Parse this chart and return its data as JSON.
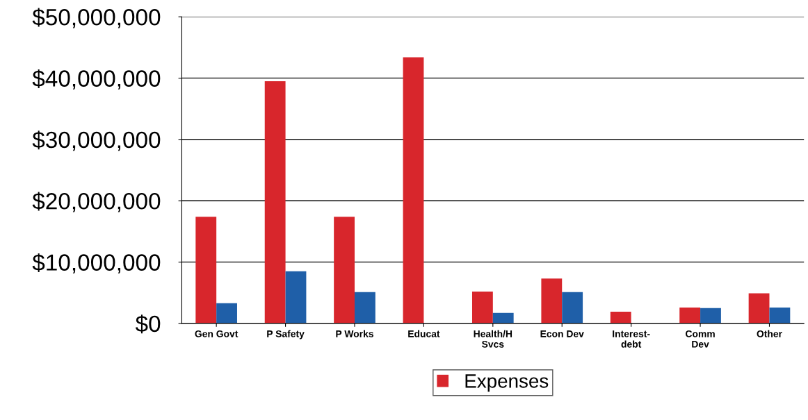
{
  "chart_data": {
    "type": "bar",
    "categories": [
      "Gen Govt",
      "P Safety",
      "P Works",
      "Educat",
      "Health/H\nSvcs",
      "Econ Dev",
      "Interest-\ndebt",
      "Comm\nDev",
      "Other"
    ],
    "series": [
      {
        "name": "Expenses",
        "color": "#d8262c",
        "values": [
          17400000,
          39500000,
          17400000,
          43400000,
          5200000,
          7300000,
          1900000,
          2600000,
          4900000
        ]
      },
      {
        "color": "#1f5fa8",
        "values": [
          3300000,
          8500000,
          5100000,
          null,
          1700000,
          5100000,
          null,
          2500000,
          2600000
        ]
      }
    ],
    "ylim": [
      0,
      50000000
    ],
    "yticks": [
      {
        "value": 0,
        "label": "$0"
      },
      {
        "value": 10000000,
        "label": "$10,000,000"
      },
      {
        "value": 20000000,
        "label": "$20,000,000"
      },
      {
        "value": 30000000,
        "label": "$30,000,000"
      },
      {
        "value": 40000000,
        "label": "$40,000,000"
      },
      {
        "value": 50000000,
        "label": "$50,000,000"
      }
    ],
    "grid": "y",
    "legend": "bottom"
  }
}
